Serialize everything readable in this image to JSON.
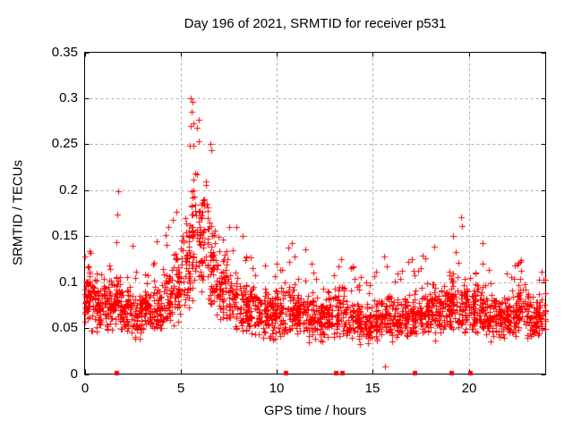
{
  "chart_data": {
    "type": "scatter",
    "title": "Day 196 of 2021, SRMTID for receiver p531",
    "xlabel": "GPS time / hours",
    "ylabel": "SRMTID / TECUs",
    "xlim": [
      0,
      24
    ],
    "ylim": [
      0,
      0.35
    ],
    "xticks": [
      0,
      5,
      10,
      15,
      20
    ],
    "xtick_labels": [
      "0",
      "5",
      "10",
      "15",
      "20"
    ],
    "yticks": [
      0,
      0.05,
      0.1,
      0.15,
      0.2,
      0.25,
      0.3,
      0.35
    ],
    "ytick_labels": [
      "0",
      "0.05",
      "0.1",
      "0.15",
      "0.2",
      "0.25",
      "0.3",
      "0.35"
    ],
    "grid": true,
    "grid_color": "#b0b0b0",
    "axis_color": "#000000",
    "background": "#ffffff",
    "marker": "plus",
    "marker_color": "#ff0000",
    "legend": "none",
    "event_markers": {
      "style": "filled-square",
      "color": "#ff0000",
      "y": 0,
      "hours": [
        1.65,
        10.45,
        13.05,
        13.4,
        17.15,
        19.1,
        20.05
      ]
    },
    "series_profile": {
      "description": "SRMTID scatter vs GPS time; dense noisy band ~0.03-0.11 TECUs all day, broad peak hours 4.5-7 reaching 0.30 near 5.6 h, secondary enhancements near 1.5-2 h (to 0.20) and 19-20 h (to 0.17).",
      "seed": 20210196,
      "bin_width_hours": 0.5,
      "bins_format": [
        "t_start",
        "band_low",
        "band_high",
        "spike_max",
        "n_points"
      ],
      "bins": [
        [
          0.0,
          0.045,
          0.115,
          0.135,
          60
        ],
        [
          0.5,
          0.045,
          0.1,
          0.12,
          55
        ],
        [
          1.0,
          0.045,
          0.11,
          0.155,
          52
        ],
        [
          1.5,
          0.045,
          0.12,
          0.2,
          55
        ],
        [
          2.0,
          0.04,
          0.1,
          0.155,
          52
        ],
        [
          2.5,
          0.035,
          0.09,
          0.115,
          50
        ],
        [
          3.0,
          0.04,
          0.1,
          0.125,
          52
        ],
        [
          3.5,
          0.035,
          0.105,
          0.145,
          50
        ],
        [
          4.0,
          0.04,
          0.12,
          0.19,
          50
        ],
        [
          4.5,
          0.05,
          0.14,
          0.21,
          50
        ],
        [
          5.0,
          0.06,
          0.19,
          0.25,
          55
        ],
        [
          5.5,
          0.07,
          0.24,
          0.305,
          55
        ],
        [
          6.0,
          0.07,
          0.22,
          0.255,
          52
        ],
        [
          6.5,
          0.055,
          0.17,
          0.21,
          50
        ],
        [
          7.0,
          0.05,
          0.15,
          0.21,
          50
        ],
        [
          7.5,
          0.045,
          0.12,
          0.185,
          50
        ],
        [
          8.0,
          0.04,
          0.1,
          0.155,
          50
        ],
        [
          8.5,
          0.04,
          0.1,
          0.13,
          48
        ],
        [
          9.0,
          0.035,
          0.095,
          0.13,
          48
        ],
        [
          9.5,
          0.035,
          0.095,
          0.12,
          48
        ],
        [
          10.0,
          0.035,
          0.095,
          0.13,
          48
        ],
        [
          10.5,
          0.035,
          0.1,
          0.145,
          48
        ],
        [
          11.0,
          0.035,
          0.095,
          0.13,
          48
        ],
        [
          11.5,
          0.03,
          0.095,
          0.14,
          48
        ],
        [
          12.0,
          0.03,
          0.09,
          0.12,
          48
        ],
        [
          12.5,
          0.035,
          0.095,
          0.13,
          48
        ],
        [
          13.0,
          0.035,
          0.1,
          0.145,
          48
        ],
        [
          13.5,
          0.03,
          0.09,
          0.12,
          46
        ],
        [
          14.0,
          0.03,
          0.085,
          0.11,
          46
        ],
        [
          14.5,
          0.03,
          0.08,
          0.105,
          46
        ],
        [
          15.0,
          0.03,
          0.085,
          0.12,
          46
        ],
        [
          15.5,
          0.035,
          0.09,
          0.13,
          46
        ],
        [
          16.0,
          0.03,
          0.09,
          0.12,
          46
        ],
        [
          16.5,
          0.035,
          0.09,
          0.125,
          46
        ],
        [
          17.0,
          0.035,
          0.095,
          0.13,
          48
        ],
        [
          17.5,
          0.035,
          0.1,
          0.135,
          48
        ],
        [
          18.0,
          0.035,
          0.1,
          0.14,
          48
        ],
        [
          18.5,
          0.04,
          0.105,
          0.15,
          48
        ],
        [
          19.0,
          0.04,
          0.115,
          0.17,
          50
        ],
        [
          19.5,
          0.04,
          0.11,
          0.155,
          48
        ],
        [
          20.0,
          0.035,
          0.1,
          0.145,
          48
        ],
        [
          20.5,
          0.035,
          0.1,
          0.14,
          46
        ],
        [
          21.0,
          0.03,
          0.09,
          0.12,
          46
        ],
        [
          21.5,
          0.03,
          0.09,
          0.115,
          46
        ],
        [
          22.0,
          0.035,
          0.095,
          0.12,
          46
        ],
        [
          22.5,
          0.04,
          0.105,
          0.125,
          48
        ],
        [
          23.0,
          0.035,
          0.095,
          0.115,
          48
        ],
        [
          23.5,
          0.035,
          0.09,
          0.112,
          44
        ]
      ],
      "extra_points": [
        [
          0.03,
          0.128
        ],
        [
          5.52,
          0.3
        ],
        [
          5.56,
          0.285
        ],
        [
          5.5,
          0.27
        ],
        [
          5.95,
          0.253
        ],
        [
          6.55,
          0.25
        ],
        [
          6.6,
          0.244
        ],
        [
          15.62,
          0.008
        ],
        [
          19.6,
          0.171
        ],
        [
          19.64,
          0.161
        ],
        [
          20.7,
          0.142
        ],
        [
          22.7,
          0.124
        ],
        [
          22.72,
          0.112
        ],
        [
          22.68,
          0.104
        ]
      ]
    }
  }
}
